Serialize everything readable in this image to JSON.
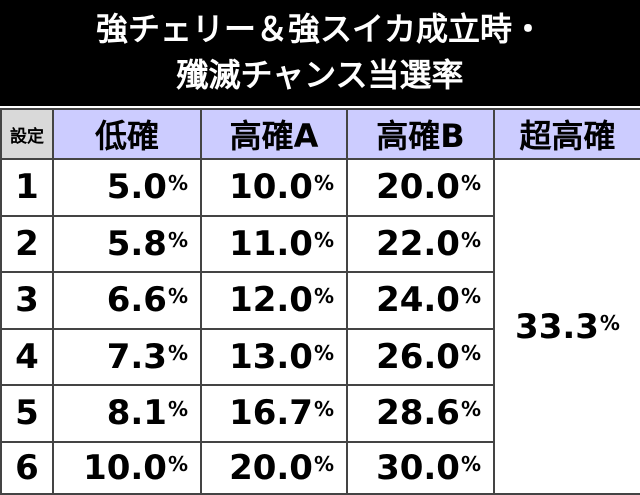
{
  "title": [
    "強チェリー＆強スイカ成立時・",
    "殲滅チャンス当選率"
  ],
  "table": {
    "header": [
      "設定",
      "低確",
      "高確A",
      "高確B",
      "超高確"
    ],
    "rows": [
      [
        "1",
        "5.0%",
        "10.0%",
        "20.0%"
      ],
      [
        "2",
        "5.8%",
        "11.0%",
        "22.0%"
      ],
      [
        "3",
        "6.6%",
        "12.0%",
        "24.0%"
      ],
      [
        "4",
        "7.3%",
        "13.0%",
        "26.0%"
      ],
      [
        "5",
        "8.1%",
        "16.7%",
        "28.6%"
      ],
      [
        "6",
        "10.0%",
        "20.0%",
        "30.0%"
      ]
    ],
    "merged": "33.3%"
  }
}
